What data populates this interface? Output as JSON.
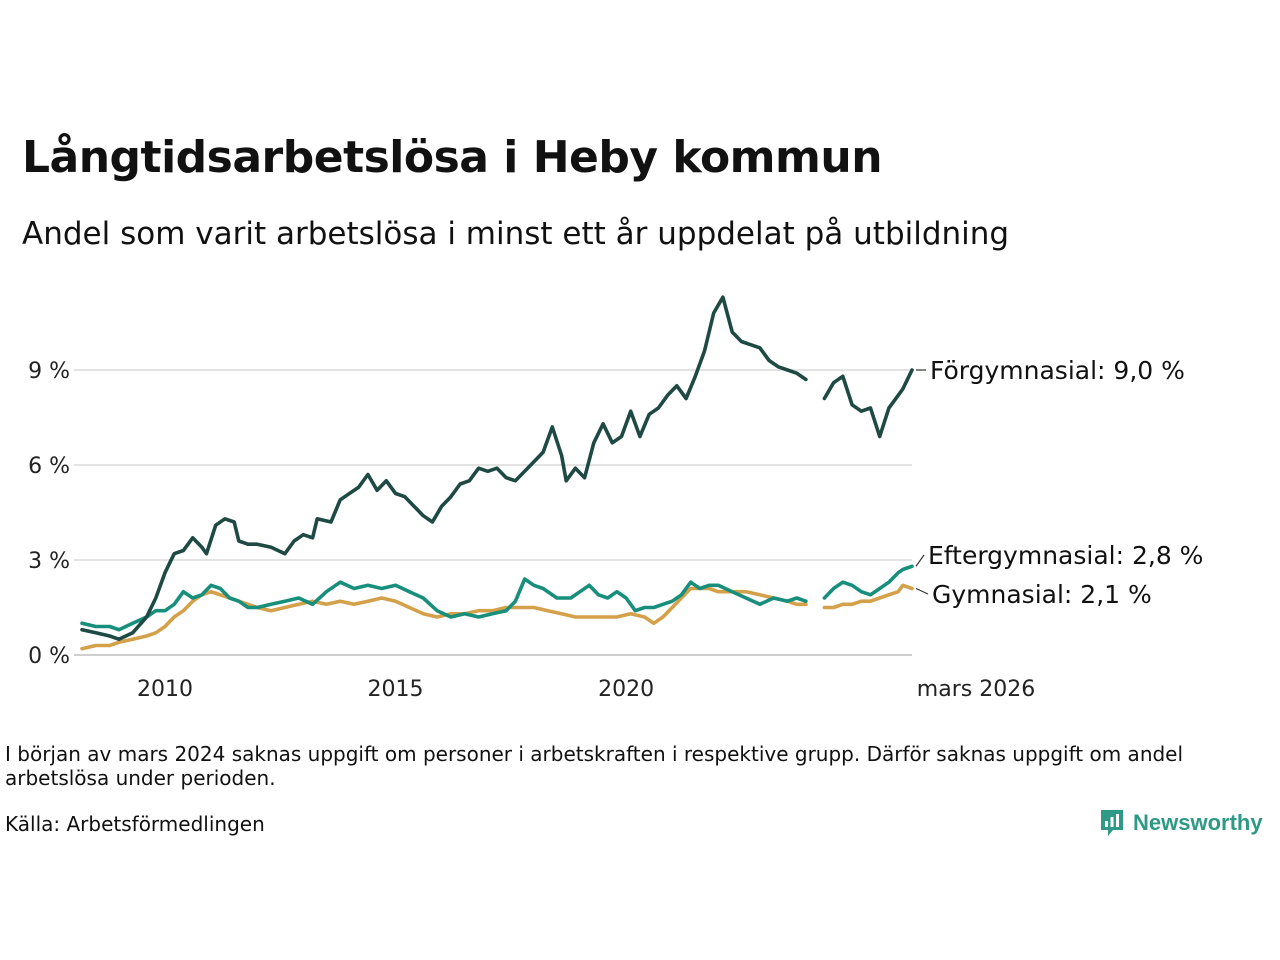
{
  "title": "Långtidsarbetslösa i Heby kommun",
  "subtitle": "Andel som varit arbetslösa i minst ett år uppdelat på utbildning",
  "note": "I början av mars 2024 saknas uppgift om personer i arbetskraften i respektive grupp. Därför saknas uppgift om andel arbetslösa under perioden.",
  "source": "Källa: Arbetsförmedlingen",
  "brand": {
    "name": "Newsworthy",
    "color": "#2e9a86"
  },
  "chart_data": {
    "type": "line",
    "title": "Långtidsarbetslösa i Heby kommun",
    "xlabel": "",
    "ylabel": "",
    "x_unit": "år (decimal)",
    "xlim": [
      2008.2,
      2026.2
    ],
    "ylim": [
      0,
      11.5
    ],
    "y_ticks": [
      0,
      3,
      6,
      9
    ],
    "y_tick_labels": [
      "0 %",
      "3 %",
      "6 %",
      "9 %"
    ],
    "x_ticks": [
      2010,
      2015,
      2020,
      2026.2
    ],
    "x_tick_labels": [
      "2010",
      "2015",
      "2020",
      "mars 2026"
    ],
    "gap": [
      2024.0,
      2024.3
    ],
    "grid": true,
    "legend": "inline labels at right end",
    "series": [
      {
        "name": "Förgymnasial",
        "end_label": "Förgymnasial: 9,0 %",
        "color": "#1f4a44",
        "points": [
          [
            2008.2,
            0.8
          ],
          [
            2008.5,
            0.7
          ],
          [
            2008.8,
            0.6
          ],
          [
            2009.0,
            0.5
          ],
          [
            2009.3,
            0.7
          ],
          [
            2009.6,
            1.2
          ],
          [
            2009.8,
            1.8
          ],
          [
            2010.0,
            2.6
          ],
          [
            2010.2,
            3.2
          ],
          [
            2010.4,
            3.3
          ],
          [
            2010.6,
            3.7
          ],
          [
            2010.8,
            3.4
          ],
          [
            2010.9,
            3.2
          ],
          [
            2011.1,
            4.1
          ],
          [
            2011.3,
            4.3
          ],
          [
            2011.5,
            4.2
          ],
          [
            2011.6,
            3.6
          ],
          [
            2011.8,
            3.5
          ],
          [
            2012.0,
            3.5
          ],
          [
            2012.3,
            3.4
          ],
          [
            2012.6,
            3.2
          ],
          [
            2012.8,
            3.6
          ],
          [
            2013.0,
            3.8
          ],
          [
            2013.2,
            3.7
          ],
          [
            2013.3,
            4.3
          ],
          [
            2013.6,
            4.2
          ],
          [
            2013.8,
            4.9
          ],
          [
            2014.0,
            5.1
          ],
          [
            2014.2,
            5.3
          ],
          [
            2014.4,
            5.7
          ],
          [
            2014.6,
            5.2
          ],
          [
            2014.8,
            5.5
          ],
          [
            2015.0,
            5.1
          ],
          [
            2015.2,
            5.0
          ],
          [
            2015.4,
            4.7
          ],
          [
            2015.6,
            4.4
          ],
          [
            2015.8,
            4.2
          ],
          [
            2016.0,
            4.7
          ],
          [
            2016.2,
            5.0
          ],
          [
            2016.4,
            5.4
          ],
          [
            2016.6,
            5.5
          ],
          [
            2016.8,
            5.9
          ],
          [
            2017.0,
            5.8
          ],
          [
            2017.2,
            5.9
          ],
          [
            2017.4,
            5.6
          ],
          [
            2017.6,
            5.5
          ],
          [
            2017.8,
            5.8
          ],
          [
            2018.0,
            6.1
          ],
          [
            2018.2,
            6.4
          ],
          [
            2018.4,
            7.2
          ],
          [
            2018.6,
            6.3
          ],
          [
            2018.7,
            5.5
          ],
          [
            2018.9,
            5.9
          ],
          [
            2019.1,
            5.6
          ],
          [
            2019.3,
            6.7
          ],
          [
            2019.5,
            7.3
          ],
          [
            2019.7,
            6.7
          ],
          [
            2019.9,
            6.9
          ],
          [
            2020.1,
            7.7
          ],
          [
            2020.3,
            6.9
          ],
          [
            2020.5,
            7.6
          ],
          [
            2020.7,
            7.8
          ],
          [
            2020.9,
            8.2
          ],
          [
            2021.1,
            8.5
          ],
          [
            2021.3,
            8.1
          ],
          [
            2021.5,
            8.8
          ],
          [
            2021.7,
            9.6
          ],
          [
            2021.9,
            10.8
          ],
          [
            2022.1,
            11.3
          ],
          [
            2022.3,
            10.2
          ],
          [
            2022.5,
            9.9
          ],
          [
            2022.7,
            9.8
          ],
          [
            2022.9,
            9.7
          ],
          [
            2023.1,
            9.3
          ],
          [
            2023.3,
            9.1
          ],
          [
            2023.5,
            9.0
          ],
          [
            2023.7,
            8.9
          ],
          [
            2023.9,
            8.7
          ],
          [
            2024.3,
            8.1
          ],
          [
            2024.5,
            8.6
          ],
          [
            2024.7,
            8.8
          ],
          [
            2024.9,
            7.9
          ],
          [
            2025.1,
            7.7
          ],
          [
            2025.3,
            7.8
          ],
          [
            2025.5,
            6.9
          ],
          [
            2025.7,
            7.8
          ],
          [
            2025.9,
            8.2
          ],
          [
            2026.0,
            8.4
          ],
          [
            2026.2,
            9.0
          ]
        ]
      },
      {
        "name": "Eftergymnasial",
        "end_label": "Eftergymnasial: 2,8 %",
        "color": "#178f7c",
        "points": [
          [
            2008.2,
            1.0
          ],
          [
            2008.5,
            0.9
          ],
          [
            2008.8,
            0.9
          ],
          [
            2009.0,
            0.8
          ],
          [
            2009.3,
            1.0
          ],
          [
            2009.6,
            1.2
          ],
          [
            2009.8,
            1.4
          ],
          [
            2010.0,
            1.4
          ],
          [
            2010.2,
            1.6
          ],
          [
            2010.4,
            2.0
          ],
          [
            2010.6,
            1.8
          ],
          [
            2010.8,
            1.9
          ],
          [
            2011.0,
            2.2
          ],
          [
            2011.2,
            2.1
          ],
          [
            2011.4,
            1.8
          ],
          [
            2011.6,
            1.7
          ],
          [
            2011.8,
            1.5
          ],
          [
            2012.0,
            1.5
          ],
          [
            2012.3,
            1.6
          ],
          [
            2012.6,
            1.7
          ],
          [
            2012.9,
            1.8
          ],
          [
            2013.2,
            1.6
          ],
          [
            2013.5,
            2.0
          ],
          [
            2013.8,
            2.3
          ],
          [
            2014.1,
            2.1
          ],
          [
            2014.4,
            2.2
          ],
          [
            2014.7,
            2.1
          ],
          [
            2015.0,
            2.2
          ],
          [
            2015.3,
            2.0
          ],
          [
            2015.6,
            1.8
          ],
          [
            2015.9,
            1.4
          ],
          [
            2016.2,
            1.2
          ],
          [
            2016.5,
            1.3
          ],
          [
            2016.8,
            1.2
          ],
          [
            2017.1,
            1.3
          ],
          [
            2017.4,
            1.4
          ],
          [
            2017.6,
            1.7
          ],
          [
            2017.8,
            2.4
          ],
          [
            2018.0,
            2.2
          ],
          [
            2018.2,
            2.1
          ],
          [
            2018.5,
            1.8
          ],
          [
            2018.8,
            1.8
          ],
          [
            2019.0,
            2.0
          ],
          [
            2019.2,
            2.2
          ],
          [
            2019.4,
            1.9
          ],
          [
            2019.6,
            1.8
          ],
          [
            2019.8,
            2.0
          ],
          [
            2020.0,
            1.8
          ],
          [
            2020.2,
            1.4
          ],
          [
            2020.4,
            1.5
          ],
          [
            2020.6,
            1.5
          ],
          [
            2020.8,
            1.6
          ],
          [
            2021.0,
            1.7
          ],
          [
            2021.2,
            1.9
          ],
          [
            2021.4,
            2.3
          ],
          [
            2021.6,
            2.1
          ],
          [
            2021.8,
            2.2
          ],
          [
            2022.0,
            2.2
          ],
          [
            2022.3,
            2.0
          ],
          [
            2022.6,
            1.8
          ],
          [
            2022.9,
            1.6
          ],
          [
            2023.2,
            1.8
          ],
          [
            2023.5,
            1.7
          ],
          [
            2023.7,
            1.8
          ],
          [
            2023.9,
            1.7
          ],
          [
            2024.3,
            1.8
          ],
          [
            2024.5,
            2.1
          ],
          [
            2024.7,
            2.3
          ],
          [
            2024.9,
            2.2
          ],
          [
            2025.1,
            2.0
          ],
          [
            2025.3,
            1.9
          ],
          [
            2025.5,
            2.1
          ],
          [
            2025.7,
            2.3
          ],
          [
            2025.9,
            2.6
          ],
          [
            2026.0,
            2.7
          ],
          [
            2026.2,
            2.8
          ]
        ]
      },
      {
        "name": "Gymnasial",
        "end_label": "Gymnasial: 2,1 %",
        "color": "#d4a04a",
        "points": [
          [
            2008.2,
            0.2
          ],
          [
            2008.5,
            0.3
          ],
          [
            2008.8,
            0.3
          ],
          [
            2009.0,
            0.4
          ],
          [
            2009.3,
            0.5
          ],
          [
            2009.6,
            0.6
          ],
          [
            2009.8,
            0.7
          ],
          [
            2010.0,
            0.9
          ],
          [
            2010.2,
            1.2
          ],
          [
            2010.4,
            1.4
          ],
          [
            2010.6,
            1.7
          ],
          [
            2010.8,
            1.9
          ],
          [
            2011.0,
            2.0
          ],
          [
            2011.2,
            1.9
          ],
          [
            2011.4,
            1.8
          ],
          [
            2011.6,
            1.7
          ],
          [
            2011.8,
            1.6
          ],
          [
            2012.0,
            1.5
          ],
          [
            2012.3,
            1.4
          ],
          [
            2012.6,
            1.5
          ],
          [
            2012.9,
            1.6
          ],
          [
            2013.2,
            1.7
          ],
          [
            2013.5,
            1.6
          ],
          [
            2013.8,
            1.7
          ],
          [
            2014.1,
            1.6
          ],
          [
            2014.4,
            1.7
          ],
          [
            2014.7,
            1.8
          ],
          [
            2015.0,
            1.7
          ],
          [
            2015.3,
            1.5
          ],
          [
            2015.6,
            1.3
          ],
          [
            2015.9,
            1.2
          ],
          [
            2016.2,
            1.3
          ],
          [
            2016.5,
            1.3
          ],
          [
            2016.8,
            1.4
          ],
          [
            2017.1,
            1.4
          ],
          [
            2017.4,
            1.5
          ],
          [
            2017.7,
            1.5
          ],
          [
            2018.0,
            1.5
          ],
          [
            2018.3,
            1.4
          ],
          [
            2018.6,
            1.3
          ],
          [
            2018.9,
            1.2
          ],
          [
            2019.2,
            1.2
          ],
          [
            2019.5,
            1.2
          ],
          [
            2019.8,
            1.2
          ],
          [
            2020.1,
            1.3
          ],
          [
            2020.4,
            1.2
          ],
          [
            2020.6,
            1.0
          ],
          [
            2020.8,
            1.2
          ],
          [
            2021.0,
            1.5
          ],
          [
            2021.2,
            1.8
          ],
          [
            2021.4,
            2.1
          ],
          [
            2021.6,
            2.1
          ],
          [
            2021.8,
            2.1
          ],
          [
            2022.0,
            2.0
          ],
          [
            2022.3,
            2.0
          ],
          [
            2022.6,
            2.0
          ],
          [
            2022.9,
            1.9
          ],
          [
            2023.2,
            1.8
          ],
          [
            2023.5,
            1.7
          ],
          [
            2023.7,
            1.6
          ],
          [
            2023.9,
            1.6
          ],
          [
            2024.3,
            1.5
          ],
          [
            2024.5,
            1.5
          ],
          [
            2024.7,
            1.6
          ],
          [
            2024.9,
            1.6
          ],
          [
            2025.1,
            1.7
          ],
          [
            2025.3,
            1.7
          ],
          [
            2025.5,
            1.8
          ],
          [
            2025.7,
            1.9
          ],
          [
            2025.9,
            2.0
          ],
          [
            2026.0,
            2.2
          ],
          [
            2026.2,
            2.1
          ]
        ]
      }
    ]
  }
}
